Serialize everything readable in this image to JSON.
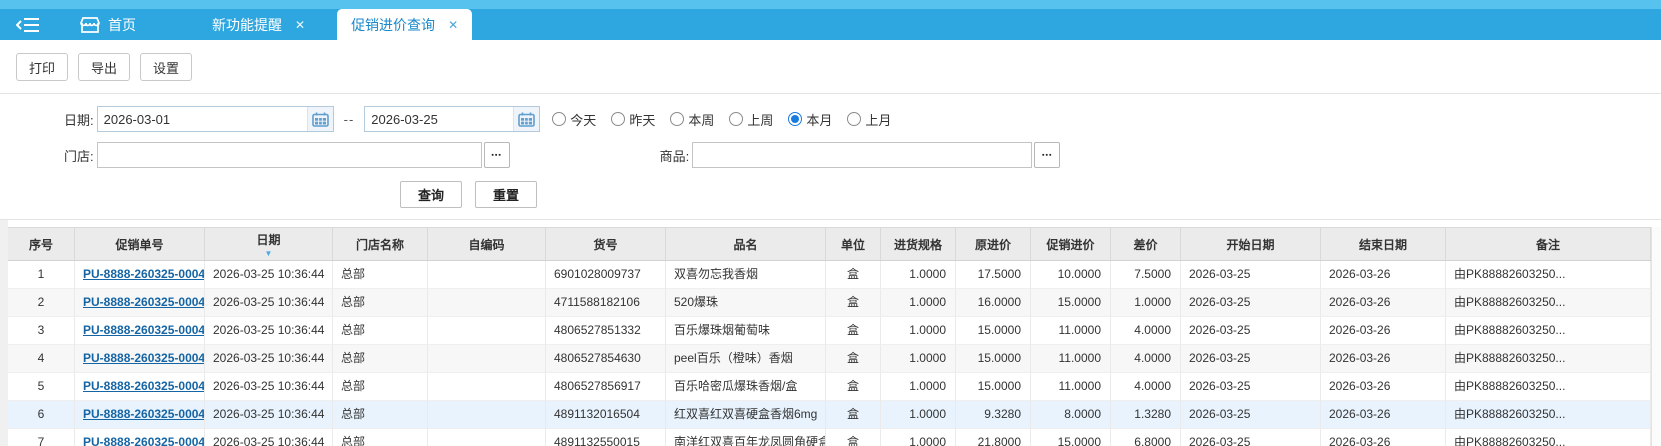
{
  "colors": {
    "topbar_blue": "#2ea7e0",
    "topbar_light_blue": "#56c2ed",
    "active_tab_text": "#1889cb",
    "link_blue": "#1565a5",
    "selected_row": "#e8f3fd",
    "radio_selected": "#1a7ce0"
  },
  "tabbar": {
    "home_label": "首页",
    "tabs": [
      {
        "label": "新功能提醒",
        "active": false
      },
      {
        "label": "促销进价查询",
        "active": true
      }
    ],
    "close_glyph": "✕"
  },
  "toolbar": {
    "buttons": [
      "打印",
      "导出",
      "设置"
    ]
  },
  "filters": {
    "date_label": "日期:",
    "date_from": "2026-03-01",
    "date_to": "2026-03-25",
    "range_separator": "--",
    "quick_ranges": [
      {
        "label": "今天",
        "selected": false
      },
      {
        "label": "昨天",
        "selected": false
      },
      {
        "label": "本周",
        "selected": false
      },
      {
        "label": "上周",
        "selected": false
      },
      {
        "label": "本月",
        "selected": true
      },
      {
        "label": "上月",
        "selected": false
      }
    ],
    "store_label": "门店:",
    "store_value": "",
    "product_label": "商品:",
    "product_value": "",
    "lookup_button": "▪▪▪",
    "query_button": "查询",
    "reset_button": "重置"
  },
  "table": {
    "columns": [
      "序号",
      "促销单号",
      "日期",
      "门店名称",
      "自编码",
      "货号",
      "品名",
      "单位",
      "进货规格",
      "原进价",
      "促销进价",
      "差价",
      "开始日期",
      "结束日期",
      "备注"
    ],
    "sorted_column": "日期",
    "sort_direction": "desc",
    "rows": [
      {
        "idx": "1",
        "order_no": "PU-8888-260325-0004",
        "datetime": "2026-03-25 10:36:44",
        "store": "总部",
        "self_code": "",
        "item_no": "6901028009737",
        "name": "双喜勿忘我香烟",
        "unit": "盒",
        "spec": "1.0000",
        "orig_price": "17.5000",
        "promo_price": "10.0000",
        "diff": "7.5000",
        "start_date": "2026-03-25",
        "end_date": "2026-03-26",
        "remark": "由PK88882603250...",
        "highlighted": false
      },
      {
        "idx": "2",
        "order_no": "PU-8888-260325-0004",
        "datetime": "2026-03-25 10:36:44",
        "store": "总部",
        "self_code": "",
        "item_no": "4711588182106",
        "name": "520爆珠",
        "unit": "盒",
        "spec": "1.0000",
        "orig_price": "16.0000",
        "promo_price": "15.0000",
        "diff": "1.0000",
        "start_date": "2026-03-25",
        "end_date": "2026-03-26",
        "remark": "由PK88882603250...",
        "highlighted": false
      },
      {
        "idx": "3",
        "order_no": "PU-8888-260325-0004",
        "datetime": "2026-03-25 10:36:44",
        "store": "总部",
        "self_code": "",
        "item_no": "4806527851332",
        "name": "百乐爆珠烟葡萄味",
        "unit": "盒",
        "spec": "1.0000",
        "orig_price": "15.0000",
        "promo_price": "11.0000",
        "diff": "4.0000",
        "start_date": "2026-03-25",
        "end_date": "2026-03-26",
        "remark": "由PK88882603250...",
        "highlighted": false
      },
      {
        "idx": "4",
        "order_no": "PU-8888-260325-0004",
        "datetime": "2026-03-25 10:36:44",
        "store": "总部",
        "self_code": "",
        "item_no": "4806527854630",
        "name": "peel百乐（橙味）香烟",
        "unit": "盒",
        "spec": "1.0000",
        "orig_price": "15.0000",
        "promo_price": "11.0000",
        "diff": "4.0000",
        "start_date": "2026-03-25",
        "end_date": "2026-03-26",
        "remark": "由PK88882603250...",
        "highlighted": false
      },
      {
        "idx": "5",
        "order_no": "PU-8888-260325-0004",
        "datetime": "2026-03-25 10:36:44",
        "store": "总部",
        "self_code": "",
        "item_no": "4806527856917",
        "name": "百乐哈密瓜爆珠香烟/盒",
        "unit": "盒",
        "spec": "1.0000",
        "orig_price": "15.0000",
        "promo_price": "11.0000",
        "diff": "4.0000",
        "start_date": "2026-03-25",
        "end_date": "2026-03-26",
        "remark": "由PK88882603250...",
        "highlighted": false
      },
      {
        "idx": "6",
        "order_no": "PU-8888-260325-0004",
        "datetime": "2026-03-25 10:36:44",
        "store": "总部",
        "self_code": "",
        "item_no": "4891132016504",
        "name": "红双喜红双喜硬盒香烟6mg",
        "unit": "盒",
        "spec": "1.0000",
        "orig_price": "9.3280",
        "promo_price": "8.0000",
        "diff": "1.3280",
        "start_date": "2026-03-25",
        "end_date": "2026-03-26",
        "remark": "由PK88882603250...",
        "highlighted": true
      },
      {
        "idx": "7",
        "order_no": "PU-8888-260325-0004",
        "datetime": "2026-03-25 10:36:44",
        "store": "总部",
        "self_code": "",
        "item_no": "4891132550015",
        "name": "南洋红双喜百年龙凤圆角硬盒",
        "unit": "盒",
        "spec": "1.0000",
        "orig_price": "21.8000",
        "promo_price": "15.0000",
        "diff": "6.8000",
        "start_date": "2026-03-25",
        "end_date": "2026-03-26",
        "remark": "由PK88882603250...",
        "highlighted": false
      }
    ]
  }
}
